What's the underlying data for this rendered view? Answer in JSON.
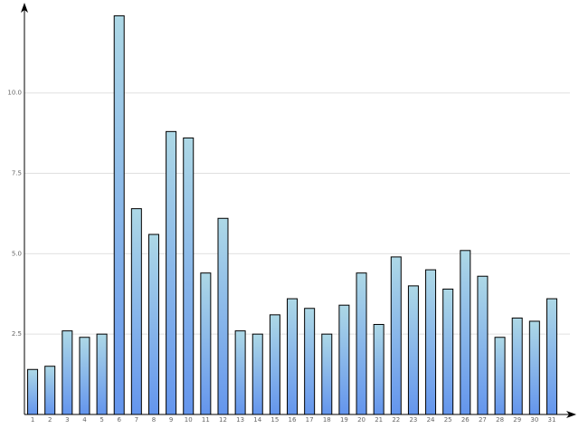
{
  "chart_data": {
    "type": "bar",
    "categories": [
      "1",
      "2",
      "3",
      "4",
      "5",
      "6",
      "7",
      "8",
      "9",
      "10",
      "11",
      "12",
      "13",
      "14",
      "15",
      "16",
      "17",
      "18",
      "19",
      "20",
      "21",
      "22",
      "23",
      "24",
      "25",
      "26",
      "27",
      "28",
      "29",
      "30",
      "31"
    ],
    "values": [
      1.4,
      1.5,
      2.6,
      2.4,
      2.5,
      12.4,
      6.4,
      5.6,
      8.8,
      8.6,
      4.4,
      6.1,
      2.6,
      2.5,
      3.1,
      3.6,
      3.3,
      2.5,
      3.4,
      4.4,
      2.8,
      4.9,
      4.0,
      4.5,
      3.9,
      5.1,
      4.3,
      2.4,
      3.0,
      2.9,
      3.6
    ],
    "gradient": [
      "#add8e6",
      "#6495ed"
    ],
    "ylim": [
      0,
      12.75
    ],
    "yticks": [
      {
        "value": 2.5,
        "label": "2.5"
      },
      {
        "value": 5,
        "label": "5.0"
      },
      7.5,
      {
        "value": 10,
        "label": "10.0"
      }
    ],
    "grid": true
  }
}
